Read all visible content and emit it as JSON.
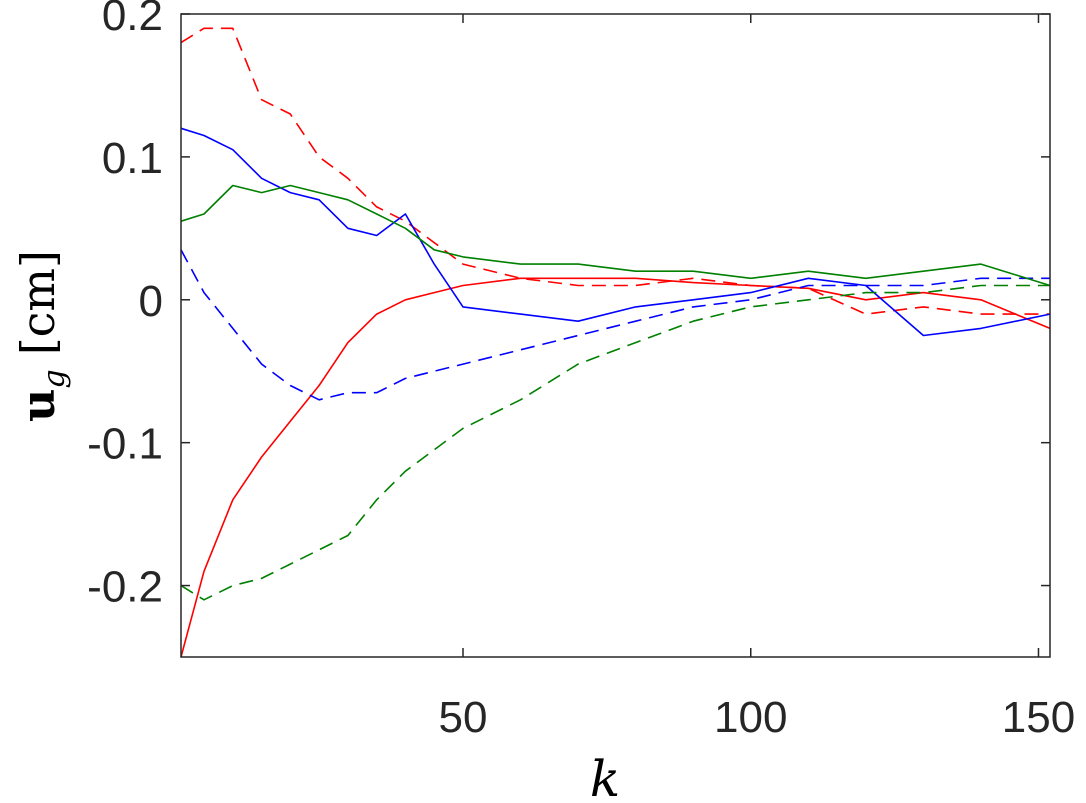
{
  "chart_data": {
    "type": "line",
    "title": "",
    "xlabel": "k",
    "ylabel_main": "u",
    "ylabel_sub": "g",
    "ylabel_unit": "[cm]",
    "xlim": [
      1,
      152
    ],
    "ylim": [
      -0.25,
      0.2
    ],
    "xticks": [
      50,
      100,
      150
    ],
    "xtick_labels": [
      "50",
      "100",
      "150"
    ],
    "yticks": [
      0.2,
      0.1,
      0,
      -0.1,
      -0.2
    ],
    "ytick_labels": [
      "0.2",
      "0.1",
      "0",
      "-0.1",
      "-0.2"
    ],
    "grid": false,
    "legend": "none",
    "series": [
      {
        "color": "#ff0000",
        "style": "solid",
        "x": [
          1,
          5,
          10,
          15,
          20,
          25,
          30,
          35,
          40,
          45,
          50,
          60,
          70,
          80,
          90,
          100,
          110,
          120,
          130,
          140,
          152
        ],
        "y": [
          -0.25,
          -0.19,
          -0.14,
          -0.11,
          -0.085,
          -0.06,
          -0.03,
          -0.01,
          0.0,
          0.005,
          0.01,
          0.015,
          0.015,
          0.015,
          0.012,
          0.01,
          0.008,
          0.0,
          0.005,
          0.0,
          -0.02
        ]
      },
      {
        "color": "#ff0000",
        "style": "dashed",
        "x": [
          1,
          5,
          10,
          15,
          20,
          25,
          30,
          35,
          40,
          45,
          50,
          60,
          70,
          80,
          90,
          100,
          110,
          120,
          130,
          140,
          152
        ],
        "y": [
          0.18,
          0.19,
          0.19,
          0.14,
          0.13,
          0.1,
          0.085,
          0.065,
          0.055,
          0.04,
          0.025,
          0.015,
          0.01,
          0.01,
          0.015,
          0.01,
          0.008,
          -0.01,
          -0.005,
          -0.01,
          -0.01
        ]
      },
      {
        "color": "#0000ff",
        "style": "solid",
        "x": [
          1,
          5,
          10,
          15,
          20,
          25,
          30,
          35,
          40,
          45,
          50,
          60,
          70,
          80,
          90,
          100,
          110,
          120,
          130,
          140,
          152
        ],
        "y": [
          0.12,
          0.115,
          0.105,
          0.085,
          0.075,
          0.07,
          0.05,
          0.045,
          0.06,
          0.025,
          -0.005,
          -0.01,
          -0.015,
          -0.005,
          0.0,
          0.005,
          0.015,
          0.01,
          -0.025,
          -0.02,
          -0.01
        ]
      },
      {
        "color": "#0000ff",
        "style": "dashed",
        "x": [
          1,
          5,
          10,
          15,
          20,
          25,
          30,
          35,
          40,
          45,
          50,
          60,
          70,
          80,
          90,
          100,
          110,
          120,
          130,
          140,
          152
        ],
        "y": [
          0.035,
          0.005,
          -0.02,
          -0.045,
          -0.06,
          -0.07,
          -0.065,
          -0.065,
          -0.055,
          -0.05,
          -0.045,
          -0.035,
          -0.025,
          -0.015,
          -0.005,
          0.0,
          0.01,
          0.01,
          0.01,
          0.015,
          0.015
        ]
      },
      {
        "color": "#008000",
        "style": "solid",
        "x": [
          1,
          5,
          10,
          15,
          20,
          25,
          30,
          35,
          40,
          45,
          50,
          60,
          70,
          80,
          90,
          100,
          110,
          120,
          130,
          140,
          152
        ],
        "y": [
          0.055,
          0.06,
          0.08,
          0.075,
          0.08,
          0.075,
          0.07,
          0.06,
          0.05,
          0.035,
          0.03,
          0.025,
          0.025,
          0.02,
          0.02,
          0.015,
          0.02,
          0.015,
          0.02,
          0.025,
          0.01
        ]
      },
      {
        "color": "#008000",
        "style": "dashed",
        "x": [
          1,
          5,
          10,
          15,
          20,
          25,
          30,
          35,
          40,
          45,
          50,
          60,
          70,
          80,
          90,
          100,
          110,
          120,
          130,
          140,
          152
        ],
        "y": [
          -0.2,
          -0.21,
          -0.2,
          -0.195,
          -0.185,
          -0.175,
          -0.165,
          -0.14,
          -0.12,
          -0.105,
          -0.09,
          -0.07,
          -0.045,
          -0.03,
          -0.015,
          -0.005,
          0.0,
          0.005,
          0.005,
          0.01,
          0.01
        ]
      }
    ]
  }
}
